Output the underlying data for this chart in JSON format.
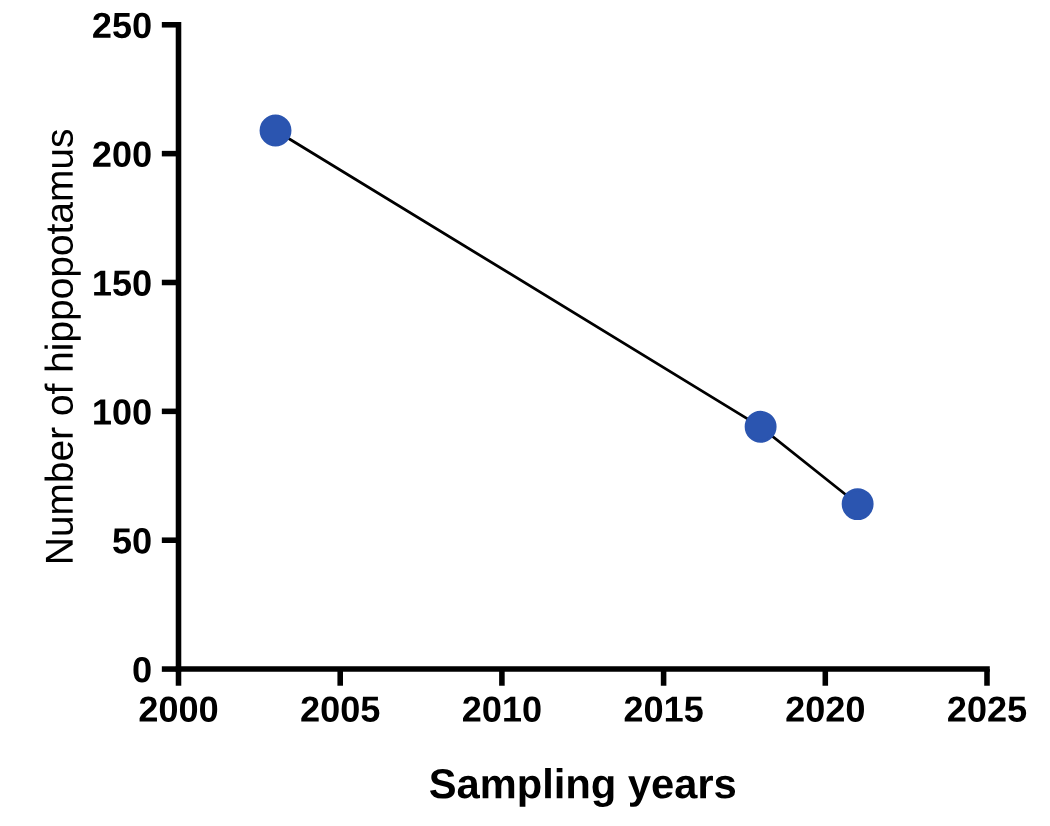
{
  "chart_data": {
    "type": "line",
    "xlabel": "Sampling years",
    "ylabel": "Number of hippopotamus",
    "x": [
      2003,
      2018,
      2021
    ],
    "series": [
      {
        "color": "#2b55b0",
        "values": [
          209,
          94,
          64
        ]
      }
    ],
    "xlim": [
      2000,
      2025
    ],
    "xticks": [
      2000,
      2005,
      2010,
      2015,
      2020,
      2025
    ],
    "ylim": [
      0,
      250
    ],
    "yticks": [
      0,
      50,
      100,
      150,
      200,
      250
    ],
    "marker": "circle",
    "line_style": "solid",
    "grid": false,
    "legend": false
  }
}
